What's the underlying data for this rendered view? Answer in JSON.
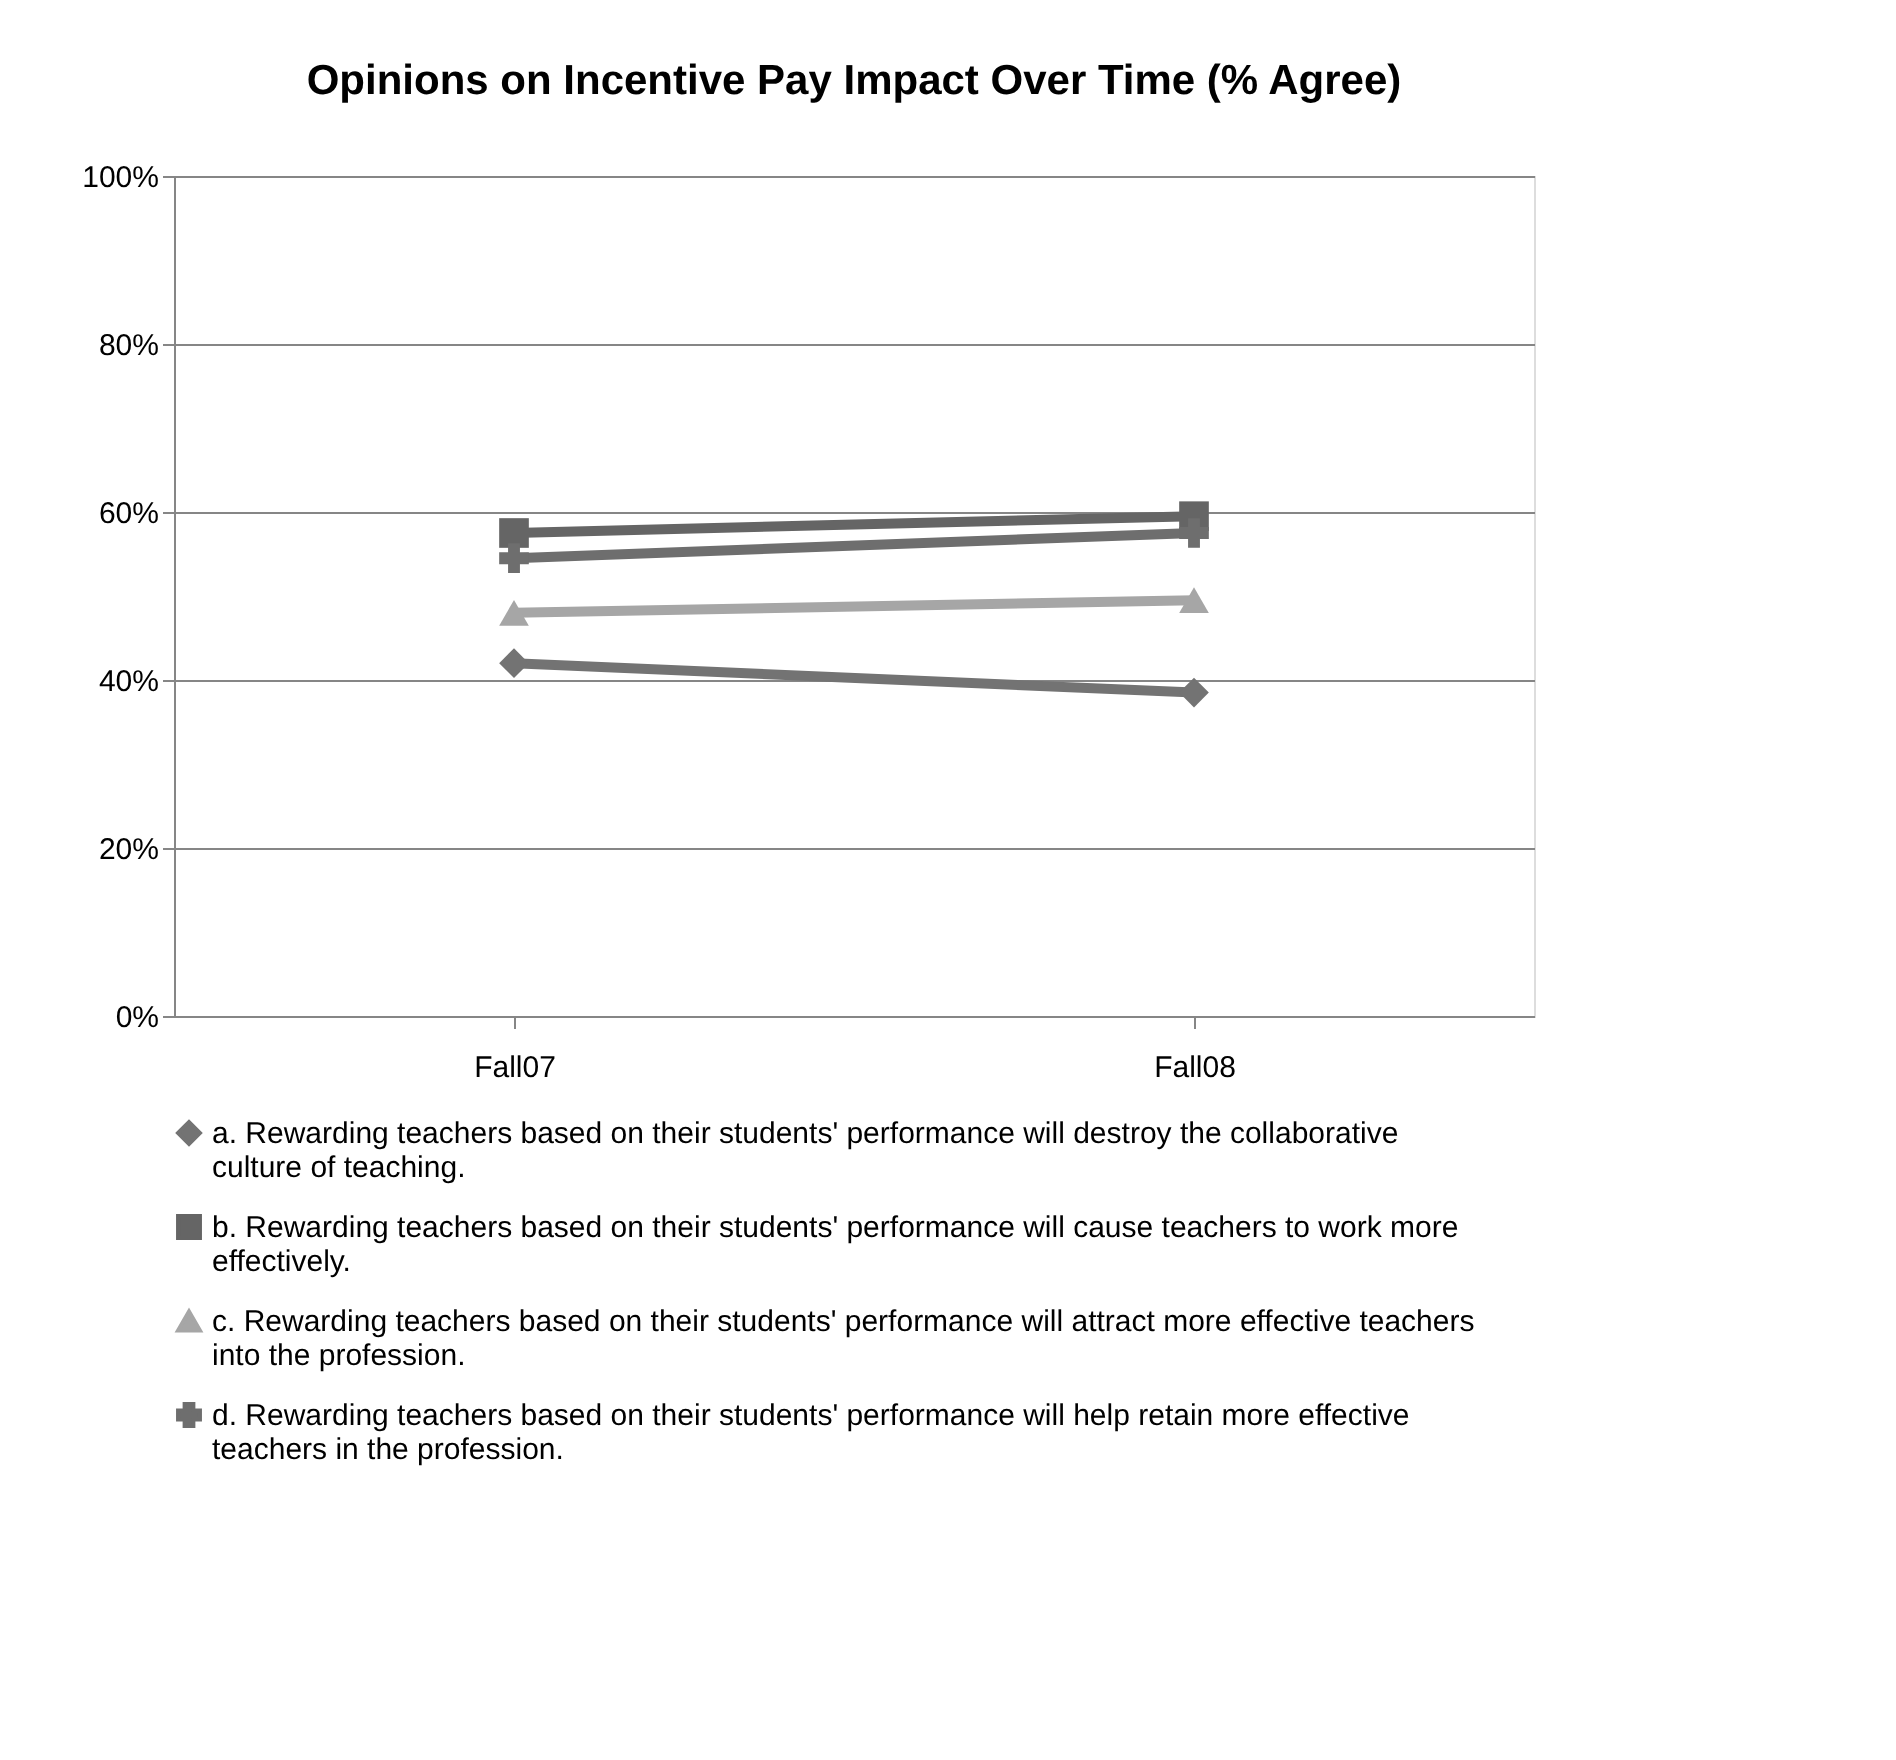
{
  "chart_data": {
    "type": "line",
    "title": "Opinions on Incentive Pay Impact Over Time (% Agree)",
    "categories": [
      "Fall07",
      "Fall08"
    ],
    "series": [
      {
        "name": "a. Rewarding teachers based on their students' performance will destroy the collaborative culture of teaching.",
        "color": "#737373",
        "marker": "diamond",
        "values": [
          42,
          38.5
        ]
      },
      {
        "name": "b. Rewarding teachers based on their students' performance will cause teachers to work more effectively.",
        "color": "#656565",
        "marker": "square",
        "values": [
          57.5,
          59.5
        ]
      },
      {
        "name": "c. Rewarding teachers based on their students' performance will attract more effective teachers into the profession.",
        "color": "#a6a6a6",
        "marker": "triangle",
        "values": [
          48,
          49.5
        ]
      },
      {
        "name": "d. Rewarding teachers based on their students' performance will help retain more effective teachers in the profession.",
        "color": "#6e6e6e",
        "marker": "cross",
        "values": [
          54.5,
          57.5
        ]
      }
    ],
    "ylim": [
      0,
      100
    ],
    "yticks": [
      {
        "value": 0,
        "label": "0%"
      },
      {
        "value": 20,
        "label": "20%"
      },
      {
        "value": 40,
        "label": "40%"
      },
      {
        "value": 60,
        "label": "60%"
      },
      {
        "value": 80,
        "label": "80%"
      },
      {
        "value": 100,
        "label": "100%"
      }
    ],
    "grid": "y",
    "legend": "bottom"
  }
}
